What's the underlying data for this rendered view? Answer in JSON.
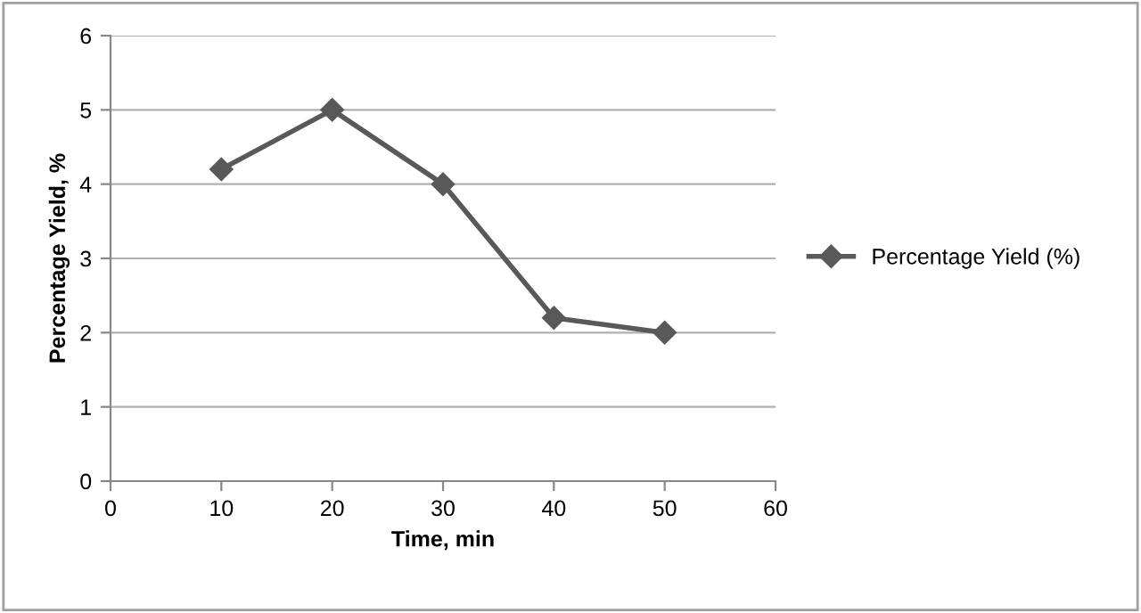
{
  "chart_data": {
    "type": "line",
    "xlabel": "Time, min",
    "ylabel": "Percentage Yield, %",
    "x": [
      10,
      20,
      30,
      40,
      50
    ],
    "series": [
      {
        "name": "Percentage Yield (%)",
        "color": "#595959",
        "values": [
          4.2,
          5,
          4,
          2.2,
          2
        ]
      }
    ],
    "xlim": [
      0,
      60
    ],
    "xticks": [
      0,
      10,
      20,
      30,
      40,
      50,
      60
    ],
    "ylim": [
      0,
      6
    ],
    "yticks": [
      0,
      1,
      2,
      3,
      4,
      5,
      6
    ],
    "grid": "y",
    "legend": "right",
    "marker": "diamond",
    "line_style": "solid"
  }
}
